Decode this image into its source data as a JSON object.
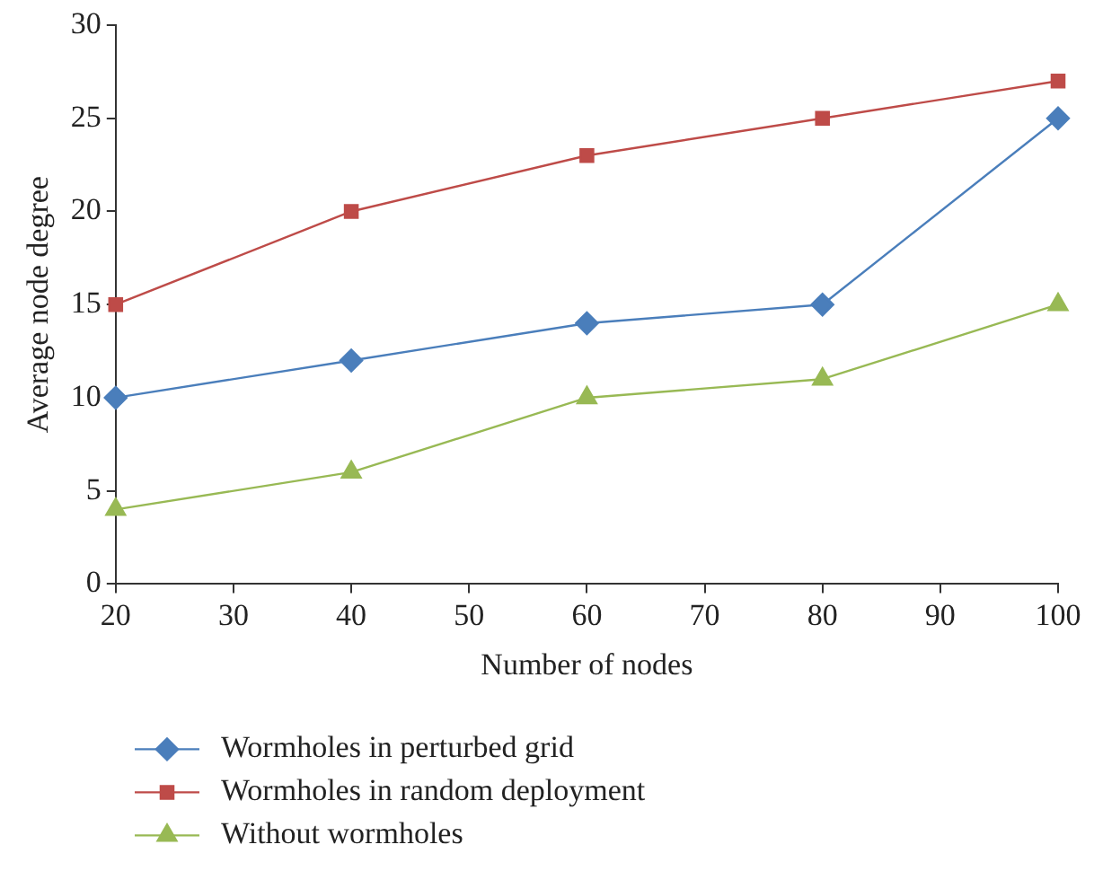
{
  "chart_data": {
    "type": "line",
    "xlabel": "Number of nodes",
    "ylabel": "Average node degree",
    "x": [
      20,
      40,
      60,
      80,
      100
    ],
    "series": [
      {
        "name": "Wormholes in perturbed grid",
        "color": "#4a7ebb",
        "marker": "diamond",
        "values": [
          10,
          12,
          14,
          15,
          25
        ]
      },
      {
        "name": "Wormholes in random deployment",
        "color": "#be4b48",
        "marker": "square",
        "values": [
          15,
          20,
          23,
          25,
          27
        ]
      },
      {
        "name": "Without wormholes",
        "color": "#98b954",
        "marker": "triangle",
        "values": [
          4,
          6,
          10,
          11,
          15
        ]
      }
    ],
    "xlim": [
      20,
      100
    ],
    "xticks": [
      20,
      30,
      40,
      50,
      60,
      70,
      80,
      90,
      100
    ],
    "ylim": [
      0,
      30
    ],
    "yticks": [
      0,
      5,
      10,
      15,
      20,
      25,
      30
    ],
    "grid": false,
    "legend": "bottom",
    "line_style": "solid"
  }
}
